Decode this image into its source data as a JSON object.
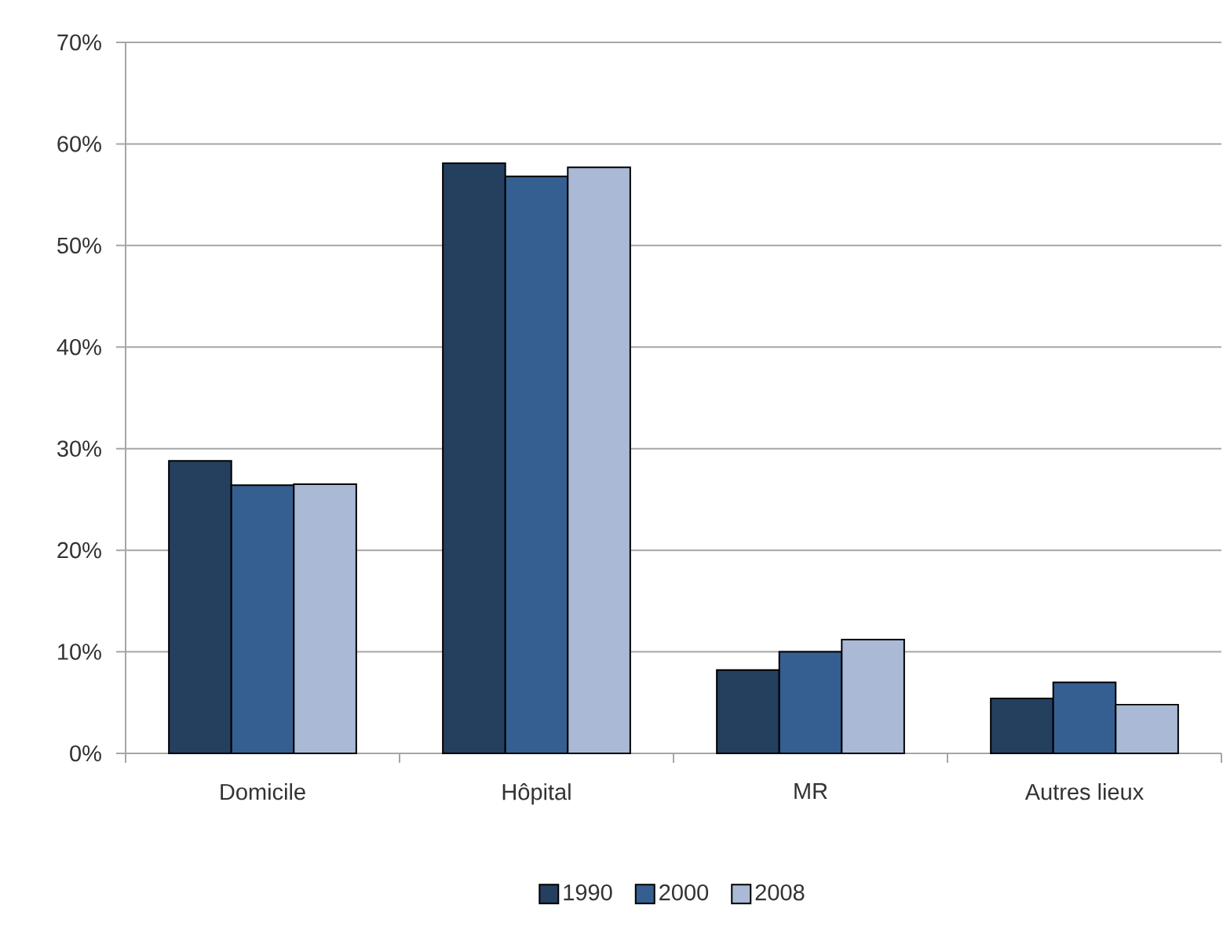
{
  "chart_data": {
    "type": "bar",
    "categories": [
      "Domicile",
      "Hôpital",
      "MR",
      "Autres lieux"
    ],
    "series": [
      {
        "name": "1990",
        "color": "#253f5f",
        "values": [
          28.8,
          58.1,
          8.2,
          5.4
        ]
      },
      {
        "name": "2000",
        "color": "#355f91",
        "values": [
          26.4,
          56.8,
          10.0,
          7.0
        ]
      },
      {
        "name": "2008",
        "color": "#aabad6",
        "values": [
          26.5,
          57.7,
          11.2,
          4.8
        ]
      }
    ],
    "ylim": [
      0,
      70
    ],
    "yticks": [
      {
        "value": 0,
        "label": "0%"
      },
      {
        "value": 10,
        "label": "10%"
      },
      {
        "value": 20,
        "label": "20%"
      },
      {
        "value": 30,
        "label": "30%"
      },
      {
        "value": 40,
        "label": "40%"
      },
      {
        "value": 50,
        "label": "50%"
      },
      {
        "value": 60,
        "label": "60%"
      },
      {
        "value": 70,
        "label": "70%"
      }
    ],
    "grid": "y",
    "legend": "bottom"
  }
}
